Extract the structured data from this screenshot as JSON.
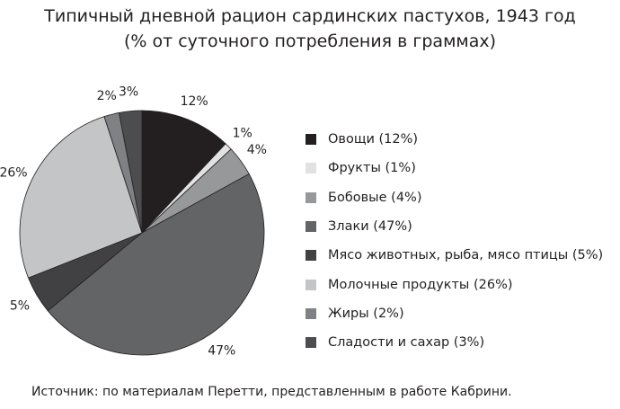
{
  "chart_data": {
    "type": "pie",
    "title": "Типичный дневной рацион сардинских пастухов, 1943 год",
    "subtitle": "(% от суточного потребления в граммах)",
    "start_angle": "top",
    "direction": "clockwise",
    "legend_position": "right",
    "slices": [
      {
        "label": "Овощи (12%)",
        "value": 12,
        "data_label": "12%",
        "color": "#231f20"
      },
      {
        "label": "Фрукты (1%)",
        "value": 1,
        "data_label": "1%",
        "color": "#e2e2e3"
      },
      {
        "label": "Бобовые (4%)",
        "value": 4,
        "data_label": "4%",
        "color": "#97989a"
      },
      {
        "label": "Злаки (47%)",
        "value": 47,
        "data_label": "47%",
        "color": "#636466"
      },
      {
        "label": "Мясо животных, рыба, мясо птицы (5%)",
        "value": 5,
        "data_label": "5%",
        "color": "#414042"
      },
      {
        "label": "Молочные продукты (26%)",
        "value": 26,
        "data_label": "26%",
        "color": "#c4c5c7"
      },
      {
        "label": "Жиры (2%)",
        "value": 2,
        "data_label": "2%",
        "color": "#808184"
      },
      {
        "label": "Сладости и сахар (3%)",
        "value": 3,
        "data_label": "3%",
        "color": "#4d4d4f"
      }
    ]
  },
  "source": "Источник: по материалам Перетти, представленным в работе Кабрини."
}
